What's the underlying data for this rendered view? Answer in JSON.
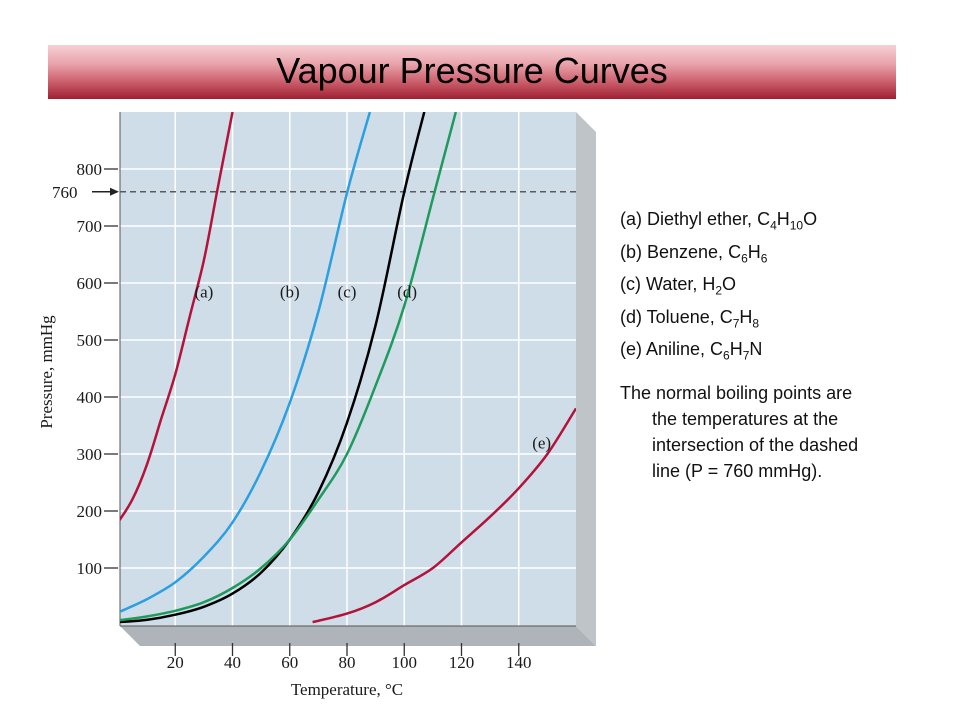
{
  "slide": {
    "title": "Vapour Pressure Curves",
    "legend": [
      {
        "letter": "(a)",
        "name": "Diethyl ether, ",
        "formula": [
          [
            "C",
            ""
          ],
          [
            "4",
            "sub"
          ],
          [
            "H",
            ""
          ],
          [
            "10",
            "sub"
          ],
          [
            "O",
            ""
          ]
        ]
      },
      {
        "letter": "(b)",
        "name": "Benzene, ",
        "formula": [
          [
            "C",
            ""
          ],
          [
            "6",
            "sub"
          ],
          [
            "H",
            ""
          ],
          [
            "6",
            "sub"
          ]
        ]
      },
      {
        "letter": "(c)",
        "name": "Water, ",
        "formula": [
          [
            "H",
            ""
          ],
          [
            "2",
            "sub"
          ],
          [
            "O",
            ""
          ]
        ]
      },
      {
        "letter": "(d)",
        "name": "Toluene, ",
        "formula": [
          [
            "C",
            ""
          ],
          [
            "7",
            "sub"
          ],
          [
            "H",
            ""
          ],
          [
            "8",
            "sub"
          ]
        ]
      },
      {
        "letter": "(e)",
        "name": "Aniline, ",
        "formula": [
          [
            "C",
            ""
          ],
          [
            "6",
            "sub"
          ],
          [
            "H",
            ""
          ],
          [
            "7",
            "sub"
          ],
          [
            "N",
            ""
          ]
        ]
      }
    ],
    "note_lines": [
      "The normal boiling points are",
      "the temperatures at the",
      "intersection of the dashed",
      "line (P = 760 mmHg)."
    ]
  },
  "chart_data": {
    "type": "line",
    "xlabel": "Temperature, °C",
    "ylabel": "Pressure, mmHg",
    "xlim": [
      0,
      160
    ],
    "ylim": [
      0,
      900
    ],
    "x_ticks": [
      20,
      40,
      60,
      80,
      100,
      120,
      140
    ],
    "y_ticks": [
      100,
      200,
      300,
      400,
      500,
      600,
      700,
      800
    ],
    "reference_line": {
      "y": 760,
      "label": "760",
      "style": "dashed"
    },
    "grid": true,
    "series": [
      {
        "name": "(a)",
        "color": "#b5123a",
        "label_at": [
          30,
          575
        ],
        "points": [
          [
            0,
            180
          ],
          [
            5,
            220
          ],
          [
            10,
            280
          ],
          [
            15,
            360
          ],
          [
            20,
            440
          ],
          [
            25,
            540
          ],
          [
            30,
            640
          ],
          [
            34.6,
            760
          ],
          [
            40,
            900
          ]
        ]
      },
      {
        "name": "(b)",
        "color": "#2b9fe0",
        "label_at": [
          60,
          575
        ],
        "points": [
          [
            0,
            22
          ],
          [
            10,
            45
          ],
          [
            20,
            75
          ],
          [
            30,
            120
          ],
          [
            40,
            180
          ],
          [
            50,
            270
          ],
          [
            60,
            390
          ],
          [
            70,
            550
          ],
          [
            80.1,
            760
          ],
          [
            88,
            900
          ]
        ]
      },
      {
        "name": "(c)",
        "color": "#000000",
        "label_at": [
          80,
          575
        ],
        "points": [
          [
            0,
            5
          ],
          [
            10,
            9
          ],
          [
            20,
            18
          ],
          [
            30,
            32
          ],
          [
            40,
            55
          ],
          [
            50,
            92
          ],
          [
            60,
            150
          ],
          [
            70,
            233
          ],
          [
            80,
            355
          ],
          [
            90,
            526
          ],
          [
            100,
            760
          ],
          [
            107,
            900
          ]
        ]
      },
      {
        "name": "(d)",
        "color": "#1e9a5c",
        "label_at": [
          101,
          575
        ],
        "points": [
          [
            0,
            8
          ],
          [
            10,
            15
          ],
          [
            20,
            25
          ],
          [
            30,
            40
          ],
          [
            40,
            65
          ],
          [
            50,
            100
          ],
          [
            60,
            150
          ],
          [
            70,
            220
          ],
          [
            80,
            300
          ],
          [
            90,
            420
          ],
          [
            100,
            560
          ],
          [
            110.6,
            760
          ],
          [
            118,
            900
          ]
        ]
      },
      {
        "name": "(e)",
        "color": "#b5123a",
        "label_at": [
          148,
          310
        ],
        "points": [
          [
            68,
            5
          ],
          [
            80,
            20
          ],
          [
            90,
            40
          ],
          [
            100,
            70
          ],
          [
            110,
            100
          ],
          [
            120,
            145
          ],
          [
            130,
            190
          ],
          [
            140,
            240
          ],
          [
            150,
            300
          ],
          [
            160,
            380
          ]
        ]
      }
    ]
  }
}
